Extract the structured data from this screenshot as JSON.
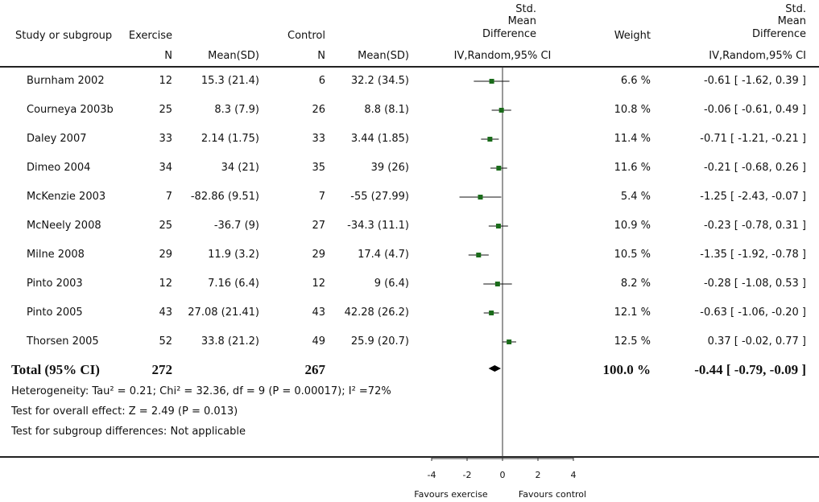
{
  "header": {
    "study": "Study or subgroup",
    "exercise": "Exercise",
    "control": "Control",
    "n": "N",
    "meansd": "Mean(SD)",
    "smd_line1": "Std.",
    "smd_line2": "Mean",
    "smd_line3": "Difference",
    "smd_method": "IV,Random,95% CI",
    "weight": "Weight"
  },
  "chart_data": {
    "type": "forest",
    "axis": {
      "min": -4,
      "max": 4,
      "ticks": [
        "-4",
        "-2",
        "0",
        "2",
        "4"
      ],
      "tick_values": [
        -4,
        -2,
        0,
        2,
        4
      ]
    },
    "favours_left": "Favours exercise",
    "favours_right": "Favours control",
    "studies": [
      {
        "name": "Burnham 2002",
        "ex_n": "12",
        "ex_msd": "15.3 (21.4)",
        "ct_n": "6",
        "ct_msd": "32.2 (34.5)",
        "weight": "6.6 %",
        "ci_text": "-0.61 [ -1.62, 0.39 ]",
        "est": -0.61,
        "lo": -1.62,
        "hi": 0.39
      },
      {
        "name": "Courneya 2003b",
        "ex_n": "25",
        "ex_msd": "8.3 (7.9)",
        "ct_n": "26",
        "ct_msd": "8.8 (8.1)",
        "weight": "10.8 %",
        "ci_text": "-0.06 [ -0.61, 0.49 ]",
        "est": -0.06,
        "lo": -0.61,
        "hi": 0.49
      },
      {
        "name": "Daley 2007",
        "ex_n": "33",
        "ex_msd": "2.14 (1.75)",
        "ct_n": "33",
        "ct_msd": "3.44 (1.85)",
        "weight": "11.4 %",
        "ci_text": "-0.71 [ -1.21, -0.21 ]",
        "est": -0.71,
        "lo": -1.21,
        "hi": -0.21
      },
      {
        "name": "Dimeo 2004",
        "ex_n": "34",
        "ex_msd": "34 (21)",
        "ct_n": "35",
        "ct_msd": "39 (26)",
        "weight": "11.6 %",
        "ci_text": "-0.21 [ -0.68, 0.26 ]",
        "est": -0.21,
        "lo": -0.68,
        "hi": 0.26
      },
      {
        "name": "McKenzie 2003",
        "ex_n": "7",
        "ex_msd": "-82.86 (9.51)",
        "ct_n": "7",
        "ct_msd": "-55 (27.99)",
        "weight": "5.4 %",
        "ci_text": "-1.25 [ -2.43, -0.07 ]",
        "est": -1.25,
        "lo": -2.43,
        "hi": -0.07
      },
      {
        "name": "McNeely 2008",
        "ex_n": "25",
        "ex_msd": "-36.7 (9)",
        "ct_n": "27",
        "ct_msd": "-34.3 (11.1)",
        "weight": "10.9 %",
        "ci_text": "-0.23 [ -0.78, 0.31 ]",
        "est": -0.23,
        "lo": -0.78,
        "hi": 0.31
      },
      {
        "name": "Milne 2008",
        "ex_n": "29",
        "ex_msd": "11.9 (3.2)",
        "ct_n": "29",
        "ct_msd": "17.4 (4.7)",
        "weight": "10.5 %",
        "ci_text": "-1.35 [ -1.92, -0.78 ]",
        "est": -1.35,
        "lo": -1.92,
        "hi": -0.78
      },
      {
        "name": "Pinto 2003",
        "ex_n": "12",
        "ex_msd": "7.16 (6.4)",
        "ct_n": "12",
        "ct_msd": "9 (6.4)",
        "weight": "8.2 %",
        "ci_text": "-0.28 [ -1.08, 0.53 ]",
        "est": -0.28,
        "lo": -1.08,
        "hi": 0.53
      },
      {
        "name": "Pinto 2005",
        "ex_n": "43",
        "ex_msd": "27.08 (21.41)",
        "ct_n": "43",
        "ct_msd": "42.28 (26.2)",
        "weight": "12.1 %",
        "ci_text": "-0.63 [ -1.06, -0.20 ]",
        "est": -0.63,
        "lo": -1.06,
        "hi": -0.2
      },
      {
        "name": "Thorsen 2005",
        "ex_n": "52",
        "ex_msd": "33.8 (21.2)",
        "ct_n": "49",
        "ct_msd": "25.9 (20.7)",
        "weight": "12.5 %",
        "ci_text": "0.37 [ -0.02, 0.77 ]",
        "est": 0.37,
        "lo": -0.02,
        "hi": 0.77
      }
    ],
    "total": {
      "label": "Total (95% CI)",
      "ex_n": "272",
      "ct_n": "267",
      "weight": "100.0 %",
      "ci_text": "-0.44 [ -0.79, -0.09 ]",
      "est": -0.44,
      "lo": -0.79,
      "hi": -0.09
    },
    "marker_color": "#1a6b1a"
  },
  "footer": {
    "heterogeneity": "Heterogeneity: Tau² = 0.21; Chi² = 32.36, df = 9 (P = 0.00017); I² =72%",
    "overall": "Test for overall effect: Z = 2.49 (P = 0.013)",
    "subgroup": "Test for subgroup differences: Not applicable"
  }
}
